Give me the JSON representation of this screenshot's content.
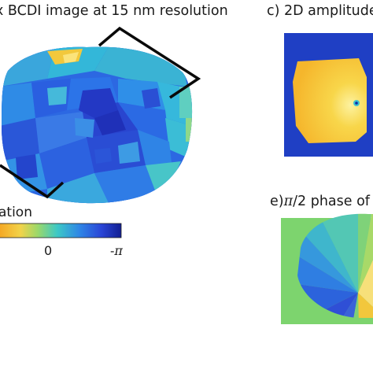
{
  "figure": {
    "panel_b_title": "x BCDI image at 15 nm resolution",
    "panel_c_title": "c) 2D amplitude",
    "panel_e_title_prefix": "e)",
    "panel_e_title_pi": "π",
    "panel_e_title_suffix": "/2 phase of",
    "colorbar_label": "ation",
    "colorbar_tick_zero": "0",
    "colorbar_tick_neg_sign": "-",
    "colorbar_tick_neg_pi": "π",
    "colormap": [
      "#f5a623",
      "#f6d03a",
      "#a6d96a",
      "#41c6c9",
      "#2f7fe0",
      "#2a3bd8",
      "#0f1c8c"
    ]
  },
  "colors": {
    "crystal_blue": "#2f6ee8",
    "crystal_cyan": "#3ccad6",
    "amplitude_bg": "#1f3fc4",
    "amplitude_fg": "#f6c03a",
    "phase_bg": "#7dd46e",
    "frame": "#0a0a0a"
  }
}
